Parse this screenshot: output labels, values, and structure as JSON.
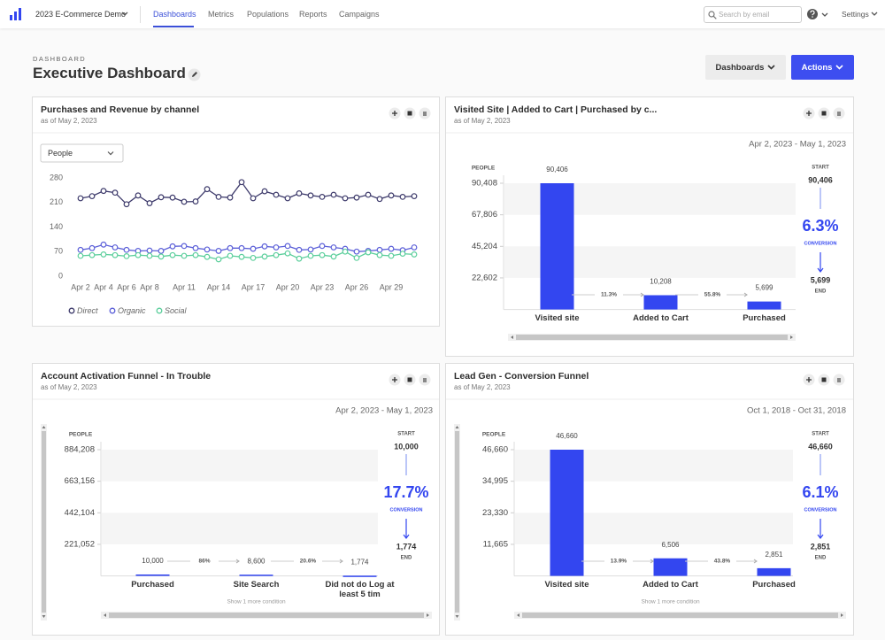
{
  "nav": {
    "project": "2023 E-Commerce Demo",
    "tabs": [
      "Dashboards",
      "Metrics",
      "Populations",
      "Reports",
      "Campaigns"
    ],
    "search_placeholder": "Search by email",
    "settings": "Settings"
  },
  "header": {
    "eyebrow": "DASHBOARD",
    "title": "Executive Dashboard",
    "buttons": [
      "Dashboards",
      "Actions"
    ]
  },
  "cards": [
    {
      "chart_data": {
        "type": "line",
        "title": "Purchases and Revenue by channel",
        "subtitle": "as of May 2, 2023",
        "selector": "People",
        "categories": [
          "Apr 2",
          null,
          "Apr 4",
          null,
          "Apr 6",
          null,
          "Apr 8",
          null,
          null,
          "Apr 11",
          null,
          null,
          "Apr 14",
          null,
          null,
          "Apr 17",
          null,
          null,
          "Apr 20",
          null,
          null,
          "Apr 23",
          null,
          null,
          "Apr 26",
          null,
          null,
          "Apr 29",
          null,
          null
        ],
        "series": [
          {
            "name": "Direct",
            "color": "#3d3a6b",
            "values": [
              222,
              228,
              243,
              238,
              205,
              230,
              208,
              225,
              224,
              212,
              213,
              248,
              226,
              224,
              268,
              222,
              242,
              232,
              222,
              236,
              230,
              226,
              232,
              222,
              224,
              232,
              220,
              230,
              226,
              228
            ]
          },
          {
            "name": "Organic",
            "color": "#5b5fd8",
            "values": [
              75,
              80,
              90,
              82,
              75,
              72,
              73,
              72,
              85,
              86,
              80,
              76,
              72,
              80,
              80,
              78,
              85,
              82,
              86,
              75,
              76,
              86,
              82,
              78,
              70,
              72,
              75,
              78,
              74,
              82
            ]
          },
          {
            "name": "Social",
            "color": "#5ccf9c",
            "values": [
              58,
              60,
              62,
              60,
              57,
              60,
              58,
              56,
              60,
              58,
              60,
              55,
              48,
              58,
              55,
              52,
              56,
              60,
              65,
              50,
              58,
              60,
              56,
              70,
              52,
              68,
              60,
              58,
              64,
              62
            ]
          }
        ],
        "ylim": [
          0,
          280
        ],
        "yticks": [
          0,
          70,
          140,
          210,
          280
        ]
      }
    },
    {
      "chart_data": {
        "type": "funnel",
        "title": "Visited Site | Added to Cart | Purchased by c...",
        "subtitle": "as of May 2, 2023",
        "date_range": "Apr 2, 2023 - May 1, 2023",
        "y_label": "PEOPLE",
        "categories": [
          "Visited site",
          "Added to Cart",
          "Purchased"
        ],
        "values": [
          90406,
          10208,
          5699
        ],
        "value_labels": [
          "90,406",
          "10,208",
          "5,699"
        ],
        "color": "#3346f0",
        "ylim": [
          0,
          90408
        ],
        "yticks": [
          {
            "value": 22602,
            "label": "22,602"
          },
          {
            "value": 45204,
            "label": "45,204"
          },
          {
            "value": 67806,
            "label": "67,806"
          },
          {
            "value": 90408,
            "label": "90,408"
          }
        ],
        "step_labels": [
          "11.3%",
          "55.8%"
        ],
        "summary": {
          "start_label": "START",
          "start": "90,406",
          "conversion": "6.3%",
          "conversion_label": "CONVERSION",
          "end": "5,699",
          "end_label": "END"
        }
      }
    },
    {
      "chart_data": {
        "type": "funnel",
        "title": "Account Activation Funnel - In Trouble",
        "subtitle": "as of May 2, 2023",
        "date_range": "Apr 2, 2023 - May 1, 2023",
        "y_label": "PEOPLE",
        "categories": [
          "Purchased",
          "Site Search",
          "Did not do Log at least 5 tim"
        ],
        "values": [
          10000,
          8600,
          1774
        ],
        "value_labels": [
          "10,000",
          "8,600",
          "1,774"
        ],
        "color": "#3346f0",
        "ylim": [
          0,
          884208
        ],
        "yticks": [
          {
            "value": 221052,
            "label": "221,052"
          },
          {
            "value": 442104,
            "label": "442,104"
          },
          {
            "value": 663156,
            "label": "663,156"
          },
          {
            "value": 884208,
            "label": "884,208"
          }
        ],
        "step_labels": [
          "86%",
          "20.6%"
        ],
        "footnote": "Show 1 more condition",
        "summary": {
          "start_label": "START",
          "start": "10,000",
          "conversion": "17.7%",
          "conversion_label": "CONVERSION",
          "end": "1,774",
          "end_label": "END"
        }
      }
    },
    {
      "chart_data": {
        "type": "funnel",
        "title": "Lead Gen - Conversion Funnel",
        "subtitle": "as of May 2, 2023",
        "date_range": "Oct 1, 2018 - Oct 31, 2018",
        "y_label": "PEOPLE",
        "categories": [
          "Visited site",
          "Added to Cart",
          "Purchased"
        ],
        "values": [
          46660,
          6506,
          2851
        ],
        "value_labels": [
          "46,660",
          "6,506",
          "2,851"
        ],
        "color": "#3346f0",
        "ylim": [
          0,
          46660
        ],
        "yticks": [
          {
            "value": 11665,
            "label": "11,665"
          },
          {
            "value": 23330,
            "label": "23,330"
          },
          {
            "value": 34995,
            "label": "34,995"
          },
          {
            "value": 46660,
            "label": "46,660"
          }
        ],
        "step_labels": [
          "13.9%",
          "43.8%"
        ],
        "footnote": "Show 1 more condition",
        "summary": {
          "start_label": "START",
          "start": "46,660",
          "conversion": "6.1%",
          "conversion_label": "CONVERSION",
          "end": "2,851",
          "end_label": "END"
        }
      }
    }
  ]
}
